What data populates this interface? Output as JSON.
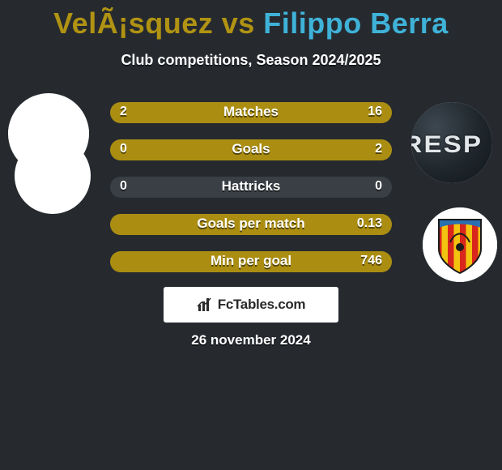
{
  "title_parts": {
    "player1_name": "VelÃ¡squez",
    "vs": "vs",
    "player2_name": "Filippo Berra",
    "player1_color": "#b09312",
    "player2_color": "#3fb2d8"
  },
  "subtitle": "Club competitions, Season 2024/2025",
  "colors": {
    "background": "#262a2f",
    "bar_track": "#3a3f45",
    "bar_fill": "#ab8e11",
    "text": "#ffffff"
  },
  "stats": [
    {
      "label": "Matches",
      "left_val": "2",
      "right_val": "16",
      "left_pct": 11,
      "right_pct": 89
    },
    {
      "label": "Goals",
      "left_val": "0",
      "right_val": "2",
      "left_pct": 0,
      "right_pct": 100
    },
    {
      "label": "Hattricks",
      "left_val": "0",
      "right_val": "0",
      "left_pct": 0,
      "right_pct": 0
    },
    {
      "label": "Goals per match",
      "left_val": "",
      "right_val": "0.13",
      "left_pct": 0,
      "right_pct": 100
    },
    {
      "label": "Min per goal",
      "left_val": "",
      "right_val": "746",
      "left_pct": 0,
      "right_pct": 100
    }
  ],
  "brand_text": "FcTables.com",
  "date_text": "26 november 2024",
  "right_avatar1_text": "RESP",
  "crest": {
    "stripe_colors": [
      "#d8261c",
      "#f3c40f"
    ],
    "arc_color": "#2a6fb0",
    "border_color": "#1b1b1b"
  }
}
